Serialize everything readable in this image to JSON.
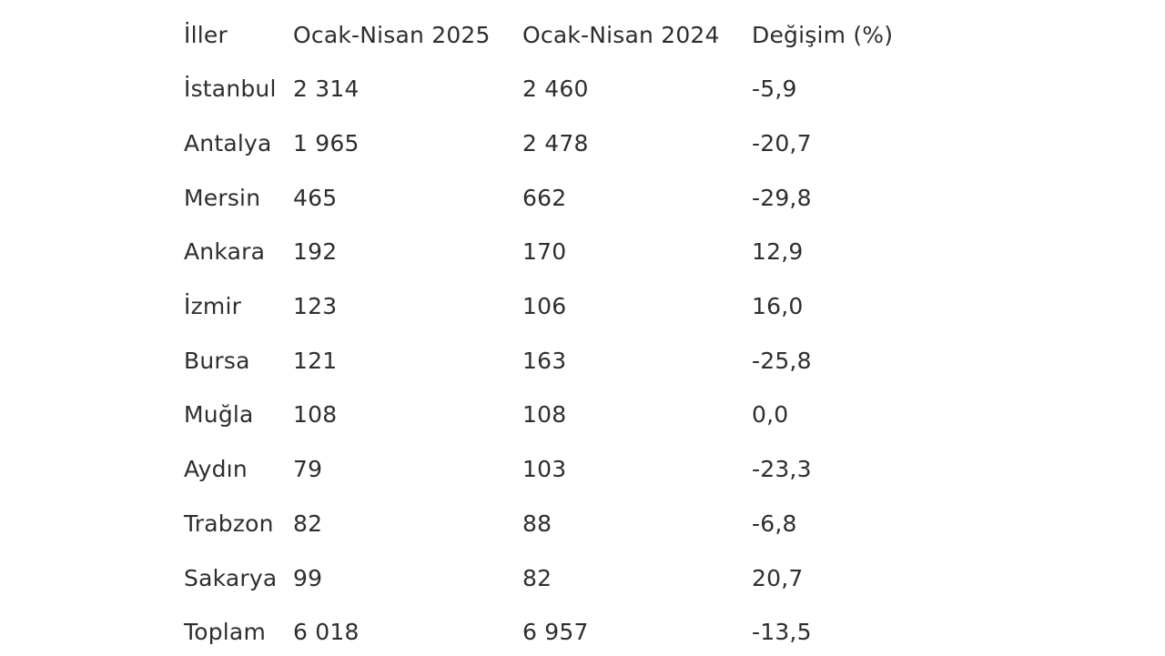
{
  "table": {
    "headers": [
      "İller",
      "Ocak-Nisan 2025",
      "Ocak-Nisan 2024",
      "Değişim (%)"
    ],
    "rows": [
      [
        "İstanbul",
        "2 314",
        "2 460",
        "-5,9"
      ],
      [
        "Antalya",
        "1 965",
        "2 478",
        "-20,7"
      ],
      [
        "Mersin",
        "465",
        "662",
        "-29,8"
      ],
      [
        "Ankara",
        "192",
        "170",
        "12,9"
      ],
      [
        "İzmir",
        "123",
        "106",
        "16,0"
      ],
      [
        "Bursa",
        "121",
        "163",
        "-25,8"
      ],
      [
        "Muğla",
        "108",
        "108",
        "0,0"
      ],
      [
        "Aydın",
        "79",
        "103",
        "-23,3"
      ],
      [
        "Trabzon",
        "82",
        "88",
        "-6,8"
      ],
      [
        "Sakarya",
        "99",
        "82",
        "20,7"
      ],
      [
        "Toplam",
        "6 018",
        "6 957",
        "-13,5"
      ]
    ]
  },
  "colors": {
    "text": "#2e2e2e",
    "background": "#ffffff"
  }
}
